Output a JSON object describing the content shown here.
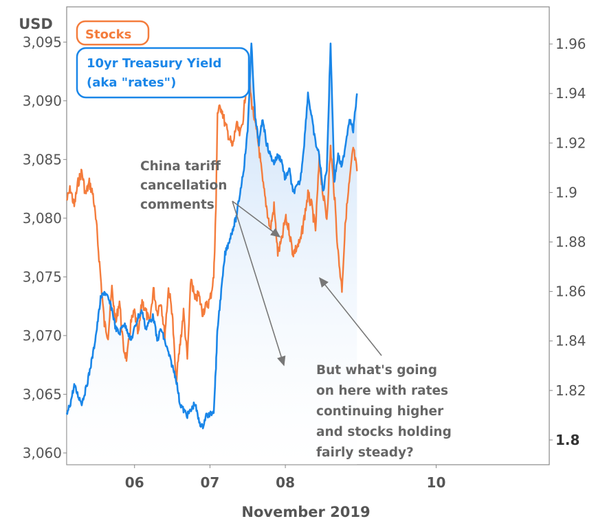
{
  "chart_data": {
    "type": "line",
    "ylabel_left": "USD",
    "xlabel": "November 2019",
    "x_ticks": [
      "06",
      "07",
      "08",
      "10"
    ],
    "y_left_ticks": [
      "3,095",
      "3,090",
      "3,085",
      "3,080",
      "3,075",
      "3,070",
      "3,065",
      "3,060"
    ],
    "y_right_ticks": [
      "1.96",
      "1.94",
      "1.92",
      "1.9",
      "1.88",
      "1.86",
      "1.84",
      "1.82",
      "1.8"
    ],
    "ylim_left": [
      3059,
      3098
    ],
    "ylim_right": [
      1.79,
      1.975
    ],
    "x_range": [
      5.1,
      11.5
    ],
    "series": [
      {
        "name": "Stocks",
        "axis": "left",
        "color": "#f47c3c",
        "x": [
          5.1,
          5.15,
          5.2,
          5.25,
          5.3,
          5.35,
          5.4,
          5.45,
          5.5,
          5.55,
          5.6,
          5.65,
          5.7,
          5.75,
          5.8,
          5.85,
          5.9,
          5.95,
          6.0,
          6.05,
          6.1,
          6.15,
          6.2,
          6.25,
          6.3,
          6.35,
          6.4,
          6.45,
          6.5,
          6.55,
          6.6,
          6.65,
          6.7,
          6.75,
          6.8,
          6.85,
          6.9,
          6.95,
          7.0,
          7.05,
          7.08,
          7.1,
          7.15,
          7.2,
          7.25,
          7.3,
          7.35,
          7.4,
          7.45,
          7.5,
          7.55,
          7.6,
          7.65,
          7.7,
          7.75,
          7.8,
          7.85,
          7.9,
          7.95,
          8.0,
          8.05,
          8.1,
          8.15,
          8.2,
          8.25,
          8.3,
          8.35,
          8.4,
          8.45,
          8.5,
          8.55,
          8.6,
          8.65,
          8.7,
          8.75,
          8.8,
          8.85,
          8.9,
          8.95
        ],
        "y": [
          3081.5,
          3082.5,
          3081,
          3083,
          3084,
          3082,
          3083,
          3082,
          3079,
          3075,
          3071,
          3070,
          3074,
          3071,
          3073,
          3069,
          3068,
          3071,
          3072,
          3070,
          3073,
          3072,
          3071,
          3074,
          3072,
          3073,
          3070,
          3074,
          3072,
          3066,
          3069,
          3072,
          3068,
          3075,
          3073,
          3073.5,
          3072,
          3072.5,
          3073,
          3075,
          3081,
          3089,
          3089.5,
          3088,
          3087,
          3086,
          3088,
          3087,
          3089,
          3093,
          3090,
          3088,
          3086,
          3083,
          3081,
          3079,
          3081,
          3077,
          3078,
          3080,
          3079,
          3077,
          3077.5,
          3078,
          3080,
          3082,
          3081,
          3079,
          3085,
          3082,
          3080,
          3086,
          3082,
          3077,
          3074,
          3080,
          3083,
          3086,
          3084
        ]
      },
      {
        "name": "10yr Treasury Yield (aka \"rates\")",
        "axis": "right",
        "color": "#1a86e8",
        "x": [
          5.1,
          5.15,
          5.2,
          5.25,
          5.3,
          5.35,
          5.4,
          5.45,
          5.5,
          5.55,
          5.6,
          5.65,
          5.7,
          5.75,
          5.8,
          5.85,
          5.9,
          5.95,
          6.0,
          6.05,
          6.1,
          6.15,
          6.2,
          6.25,
          6.3,
          6.35,
          6.4,
          6.45,
          6.5,
          6.55,
          6.6,
          6.65,
          6.7,
          6.75,
          6.8,
          6.85,
          6.9,
          6.95,
          7.0,
          7.05,
          7.08,
          7.1,
          7.15,
          7.2,
          7.25,
          7.3,
          7.35,
          7.4,
          7.45,
          7.5,
          7.55,
          7.6,
          7.65,
          7.7,
          7.75,
          7.8,
          7.85,
          7.9,
          7.95,
          8.0,
          8.05,
          8.1,
          8.15,
          8.2,
          8.25,
          8.3,
          8.35,
          8.4,
          8.45,
          8.5,
          8.55,
          8.6,
          8.65,
          8.7,
          8.75,
          8.8,
          8.85,
          8.9,
          8.95
        ],
        "y": [
          1.81,
          1.815,
          1.822,
          1.818,
          1.815,
          1.82,
          1.827,
          1.835,
          1.845,
          1.857,
          1.86,
          1.857,
          1.853,
          1.845,
          1.843,
          1.847,
          1.845,
          1.84,
          1.845,
          1.85,
          1.852,
          1.845,
          1.848,
          1.85,
          1.84,
          1.845,
          1.84,
          1.835,
          1.83,
          1.825,
          1.815,
          1.812,
          1.81,
          1.812,
          1.815,
          1.808,
          1.805,
          1.81,
          1.81,
          1.812,
          1.83,
          1.845,
          1.86,
          1.875,
          1.88,
          1.885,
          1.89,
          1.9,
          1.91,
          1.925,
          1.96,
          1.93,
          1.92,
          1.93,
          1.92,
          1.915,
          1.912,
          1.915,
          1.913,
          1.905,
          1.91,
          1.9,
          1.902,
          1.905,
          1.92,
          1.94,
          1.93,
          1.92,
          1.915,
          1.9,
          1.91,
          1.96,
          1.905,
          1.915,
          1.91,
          1.92,
          1.93,
          1.925,
          1.94
        ]
      }
    ],
    "annotations": [
      "China tariff",
      "cancellation",
      "comments",
      "But what's going",
      "on here with rates",
      "continuing higher",
      "and stocks holding",
      "fairly steady?"
    ],
    "grid": false,
    "legend": "top-left",
    "colors": {
      "stocks": "#f47c3c",
      "rates": "#1a86e8",
      "area_fill": "#d6e8fb"
    }
  }
}
